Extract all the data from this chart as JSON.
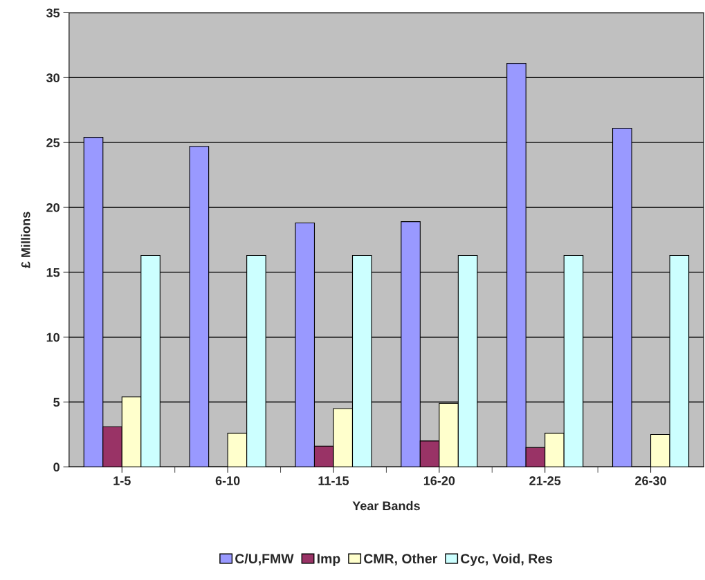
{
  "chart_data": {
    "type": "bar",
    "xlabel": "Year Bands",
    "ylabel": "£ Millions",
    "categories": [
      "1-5",
      "6-10",
      "11-15",
      "16-20",
      "21-25",
      "26-30"
    ],
    "series": [
      {
        "name": "C/U,FMW",
        "color": "#9999ff",
        "values": [
          25.4,
          24.7,
          18.8,
          18.9,
          31.1,
          26.1
        ]
      },
      {
        "name": "Imp",
        "color": "#993366",
        "values": [
          3.1,
          0,
          1.6,
          2.0,
          1.5,
          0
        ]
      },
      {
        "name": "CMR, Other",
        "color": "#ffffcc",
        "values": [
          5.4,
          2.6,
          4.5,
          4.9,
          2.6,
          2.5
        ]
      },
      {
        "name": "Cyc, Void, Res",
        "color": "#ccffff",
        "values": [
          16.3,
          16.3,
          16.3,
          16.3,
          16.3,
          16.3
        ]
      }
    ],
    "ylim": [
      0,
      35
    ],
    "yticks": [
      0,
      5,
      10,
      15,
      20,
      25,
      30,
      35
    ],
    "grid": "y",
    "legend": "bottom"
  }
}
